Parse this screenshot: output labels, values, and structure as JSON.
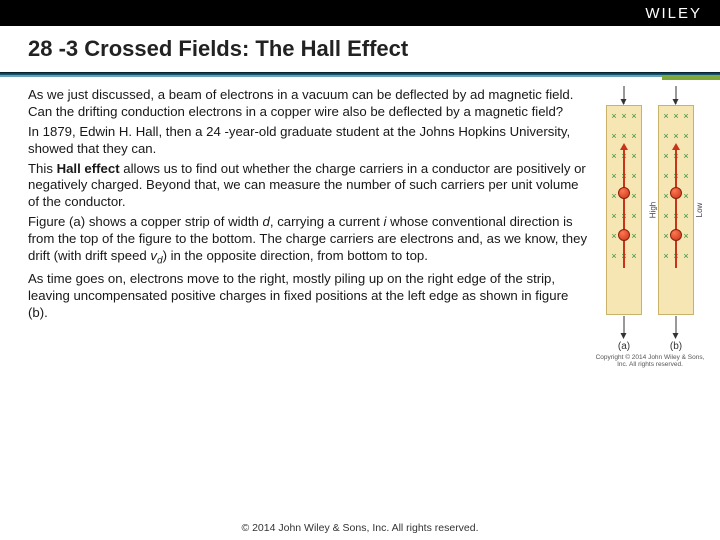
{
  "brand": "WILEY",
  "title": {
    "section": "28 -3",
    "rest": " Crossed Fields: The Hall Effect"
  },
  "paragraphs": {
    "p1": "As we just discussed, a beam of electrons in a vacuum can be deflected by ad magnetic field. Can the drifting conduction electrons in a copper wire also be deflected by a magnetic field?",
    "p2": "In 1879, Edwin H. Hall, then a 24 -year-old graduate student at the Johns Hopkins University, showed that they can.",
    "p3a": "This ",
    "p3b": "Hall effect",
    "p3c": " allows us to find out whether the charge carriers in a conductor are positively or negatively charged. Beyond that, we can measure the number of such carriers per unit volume of the conductor.",
    "p4a": "Figure (a) shows a copper strip of width ",
    "p4d": "d",
    "p4b": ", carrying a current ",
    "p4i": "i",
    "p4c": " whose conventional direction is from the top of the figure to the bottom. The charge carriers are electrons and, as we know, they drift (with drift speed ",
    "p4v": "v",
    "p4sub": "d",
    "p4e": ") in the opposite direction, from bottom to top.",
    "p5": "As time goes on, electrons move to the right, mostly piling up on the right edge of the strip, leaving uncompensated positive charges in fixed positions at the left edge as shown in figure (b)."
  },
  "figure": {
    "label_a": "(a)",
    "label_b": "(b)",
    "side_high": "High",
    "side_low": "Low",
    "copyright": "Copyright © 2014 John Wiley & Sons, Inc. All rights reserved."
  },
  "footer": "© 2014 John Wiley & Sons, Inc. All rights reserved.",
  "colors": {
    "header_bg": "#000000",
    "underline_top": "#0b3a53",
    "underline_accent": "#7fa83b",
    "strip_fill": "#f6e6b3",
    "electron": "#c8341a",
    "cross": "#2e8f3e"
  }
}
